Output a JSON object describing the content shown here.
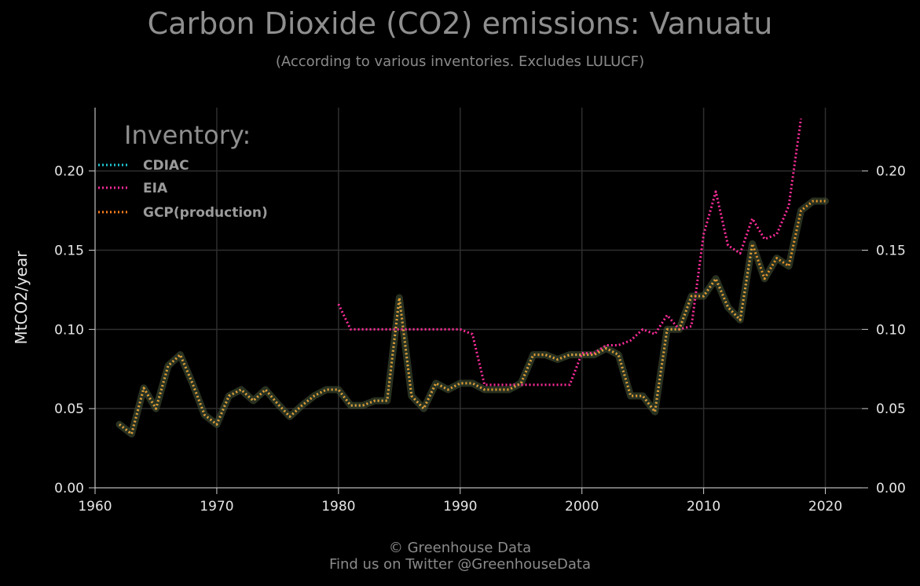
{
  "title": "Carbon Dioxide (CO2) emissions: Vanuatu",
  "subtitle": "(According to various inventories. Excludes LULUCF)",
  "footer": {
    "line1": "© Greenhouse Data",
    "line2": "Find us on Twitter @GreenhouseData"
  },
  "chart_data": {
    "type": "line",
    "title": "Carbon Dioxide (CO2) emissions: Vanuatu",
    "subtitle": "(According to various inventories. Excludes LULUCF)",
    "ylabel": "MtCO2/year",
    "xlabel": "",
    "xlim": [
      1960,
      2023
    ],
    "ylim": [
      0,
      0.24
    ],
    "xticks": [
      1960,
      1970,
      1980,
      1990,
      2000,
      2010,
      2020
    ],
    "yticks": [
      0.0,
      0.05,
      0.1,
      0.15,
      0.2
    ],
    "ytick_labels": [
      "0.00",
      "0.05",
      "0.10",
      "0.15",
      "0.20"
    ],
    "grid": true,
    "legend": {
      "title": "Inventory:",
      "placement": "top-left"
    },
    "series": [
      {
        "name": "CDIAC",
        "color": "#1fc8d6",
        "x": [
          1962,
          1963,
          1964,
          1965,
          1966,
          1967,
          1968,
          1969,
          1970,
          1971,
          1972,
          1973,
          1974,
          1975,
          1976,
          1977,
          1978,
          1979,
          1980,
          1981,
          1982,
          1983,
          1984,
          1985,
          1986,
          1987,
          1988,
          1989,
          1990,
          1991,
          1992,
          1993,
          1994,
          1995,
          1996,
          1997,
          1998,
          1999,
          2000,
          2001,
          2002,
          2003,
          2004,
          2005,
          2006,
          2007,
          2008,
          2009,
          2010,
          2011,
          2012,
          2013,
          2014
        ],
        "y": [
          0.04,
          0.034,
          0.063,
          0.05,
          0.077,
          0.084,
          0.066,
          0.046,
          0.04,
          0.058,
          0.062,
          0.055,
          0.062,
          0.053,
          0.045,
          0.052,
          0.058,
          0.062,
          0.062,
          0.052,
          0.052,
          0.055,
          0.055,
          0.12,
          0.058,
          0.05,
          0.066,
          0.062,
          0.066,
          0.066,
          0.062,
          0.062,
          0.062,
          0.066,
          0.084,
          0.084,
          0.081,
          0.084,
          0.084,
          0.084,
          0.088,
          0.084,
          0.058,
          0.058,
          0.048,
          0.1,
          0.1,
          0.121,
          0.121,
          0.132,
          0.114,
          0.106,
          0.154
        ]
      },
      {
        "name": "EIA",
        "color": "#ff2d9a",
        "x": [
          1980,
          1981,
          1982,
          1983,
          1984,
          1985,
          1986,
          1987,
          1988,
          1989,
          1990,
          1991,
          1992,
          1993,
          1994,
          1995,
          1996,
          1997,
          1998,
          1999,
          2000,
          2001,
          2002,
          2003,
          2004,
          2005,
          2006,
          2007,
          2008,
          2009,
          2010,
          2011,
          2012,
          2013,
          2014,
          2015,
          2016,
          2017,
          2018
        ],
        "y": [
          0.116,
          0.1,
          0.1,
          0.1,
          0.1,
          0.1,
          0.1,
          0.1,
          0.1,
          0.1,
          0.1,
          0.097,
          0.065,
          0.065,
          0.065,
          0.065,
          0.065,
          0.065,
          0.065,
          0.065,
          0.085,
          0.085,
          0.09,
          0.09,
          0.093,
          0.1,
          0.097,
          0.109,
          0.1,
          0.102,
          0.16,
          0.187,
          0.153,
          0.148,
          0.17,
          0.157,
          0.16,
          0.178,
          0.233
        ]
      },
      {
        "name": "GCP(production)",
        "color": "#ff7f1a",
        "x": [
          1962,
          1963,
          1964,
          1965,
          1966,
          1967,
          1968,
          1969,
          1970,
          1971,
          1972,
          1973,
          1974,
          1975,
          1976,
          1977,
          1978,
          1979,
          1980,
          1981,
          1982,
          1983,
          1984,
          1985,
          1986,
          1987,
          1988,
          1989,
          1990,
          1991,
          1992,
          1993,
          1994,
          1995,
          1996,
          1997,
          1998,
          1999,
          2000,
          2001,
          2002,
          2003,
          2004,
          2005,
          2006,
          2007,
          2008,
          2009,
          2010,
          2011,
          2012,
          2013,
          2014,
          2015,
          2016,
          2017,
          2018,
          2019,
          2020
        ],
        "y": [
          0.04,
          0.034,
          0.063,
          0.05,
          0.077,
          0.084,
          0.066,
          0.046,
          0.04,
          0.058,
          0.062,
          0.055,
          0.062,
          0.053,
          0.045,
          0.052,
          0.058,
          0.062,
          0.062,
          0.052,
          0.052,
          0.055,
          0.055,
          0.12,
          0.058,
          0.05,
          0.066,
          0.062,
          0.066,
          0.066,
          0.062,
          0.062,
          0.062,
          0.066,
          0.084,
          0.084,
          0.081,
          0.084,
          0.084,
          0.084,
          0.088,
          0.084,
          0.058,
          0.058,
          0.048,
          0.1,
          0.1,
          0.121,
          0.121,
          0.132,
          0.114,
          0.106,
          0.154,
          0.132,
          0.145,
          0.14,
          0.175,
          0.181,
          0.181
        ]
      }
    ]
  }
}
